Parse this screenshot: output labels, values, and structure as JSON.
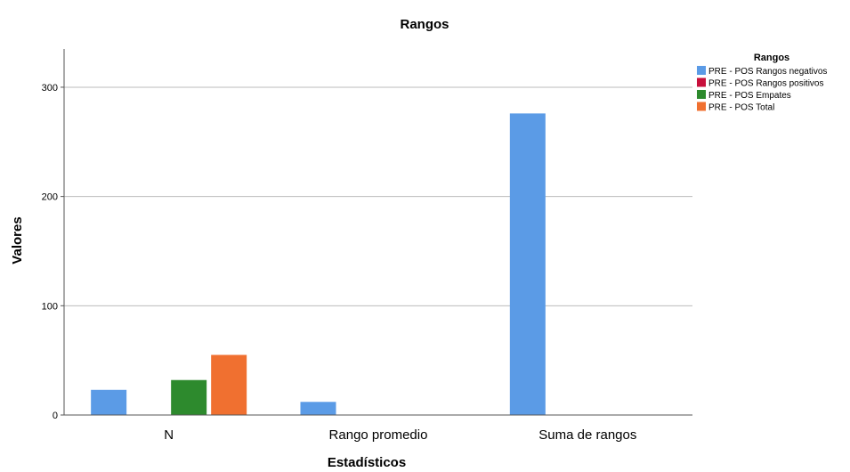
{
  "chart_data": {
    "type": "bar",
    "title": "Rangos",
    "xlabel": "Estadísticos",
    "ylabel": "Valores",
    "categories": [
      "N",
      "Rango promedio",
      "Suma de rangos"
    ],
    "ylim": [
      0,
      335
    ],
    "yticks": [
      0,
      100,
      200,
      300
    ],
    "grid": true,
    "legend_title": "Rangos",
    "legend_position": "top-right",
    "series": [
      {
        "name": "PRE - POS Rangos negativos",
        "color": "#5b9be6",
        "values": [
          23,
          12,
          276
        ]
      },
      {
        "name": "PRE - POS Rangos positivos",
        "color": "#c8103c",
        "values": [
          0,
          0,
          0
        ]
      },
      {
        "name": "PRE - POS Empates",
        "color": "#2d8a2d",
        "values": [
          32,
          0,
          0
        ]
      },
      {
        "name": "PRE - POS Total",
        "color": "#f07030",
        "values": [
          55,
          0,
          0
        ]
      }
    ]
  }
}
